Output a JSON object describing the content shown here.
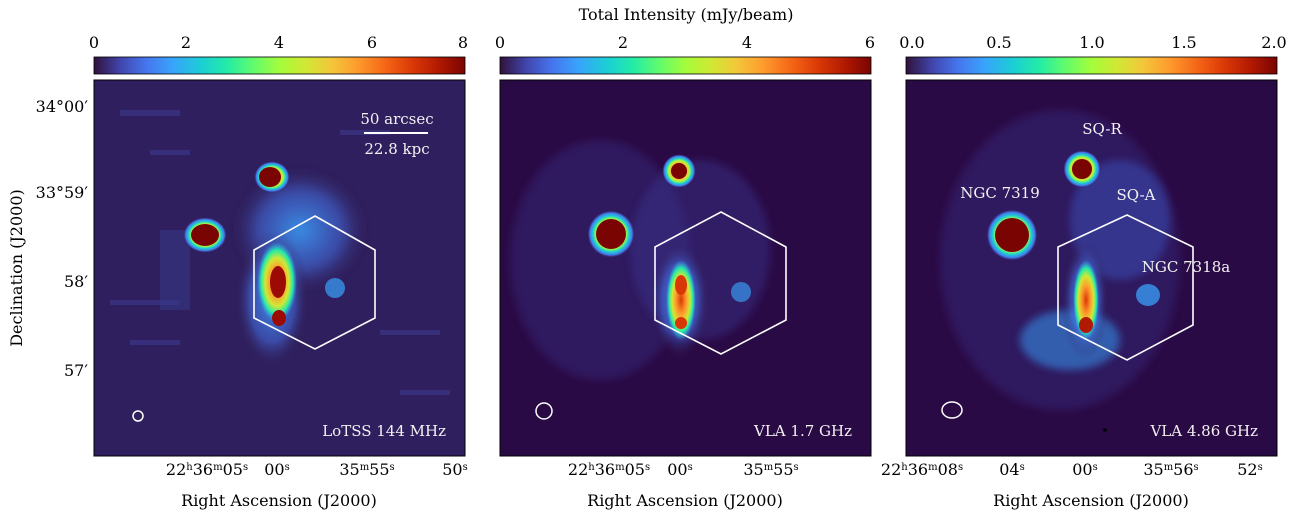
{
  "figure": {
    "colorbar_title": "Total Intensity (mJy/beam)",
    "y_axis_label": "Declination (J2000)",
    "y_tick_labels": [
      "34°00′",
      "33°59′",
      "58′",
      "57′"
    ]
  },
  "colors": {
    "background": "#2a0a45",
    "annotation": "#ffffff",
    "colormap": [
      "#30123b",
      "#4145ab",
      "#4675ed",
      "#39a2fc",
      "#1bcfd4",
      "#24eca6",
      "#61fc6c",
      "#a4fc3b",
      "#d1e834",
      "#f3c63a",
      "#fe9b2d",
      "#f36315",
      "#d93806",
      "#b11901",
      "#7a0402"
    ]
  },
  "chart_data": [
    {
      "type": "heatmap",
      "panel_label": "LoTSS 144 MHz",
      "xlabel": "Right Ascension (J2000)",
      "ylabel": "Declination (J2000)",
      "colorbar": {
        "ticks": [
          "0",
          "2",
          "4",
          "6",
          "8"
        ],
        "range": [
          0,
          8
        ],
        "unit": "mJy/beam"
      },
      "x_ticks": [
        {
          "base": "22",
          "h": "h",
          "m_val": "36",
          "m": "m",
          "s_val": "05",
          "s": "s"
        },
        {
          "base": "00",
          "s": "s"
        },
        {
          "base": "35",
          "m": "m",
          "s_val": "55",
          "s": "s"
        },
        {
          "base": "50",
          "s": "s"
        }
      ],
      "scale_bar": {
        "angular": "50 arcsec",
        "physical": "22.8 kpc"
      },
      "sources": []
    },
    {
      "type": "heatmap",
      "panel_label": "VLA 1.7 GHz",
      "xlabel": "Right Ascension (J2000)",
      "colorbar": {
        "ticks": [
          "0",
          "2",
          "4",
          "6"
        ],
        "range": [
          0,
          6
        ],
        "unit": "mJy/beam"
      },
      "x_ticks": [
        {
          "base": "22",
          "h": "h",
          "m_val": "36",
          "m": "m",
          "s_val": "05",
          "s": "s"
        },
        {
          "base": "00",
          "s": "s"
        },
        {
          "base": "35",
          "m": "m",
          "s_val": "55",
          "s": "s"
        }
      ],
      "sources": []
    },
    {
      "type": "heatmap",
      "panel_label": "VLA 4.86 GHz",
      "xlabel": "Right Ascension (J2000)",
      "colorbar": {
        "ticks": [
          "0.0",
          "0.5",
          "1.0",
          "1.5",
          "2.0"
        ],
        "range": [
          0,
          2
        ],
        "unit": "mJy/beam"
      },
      "x_ticks": [
        {
          "base": "22",
          "h": "h",
          "m_val": "36",
          "m": "m",
          "s_val": "08",
          "s": "s"
        },
        {
          "base": "04",
          "s": "s"
        },
        {
          "base": "00",
          "s": "s"
        },
        {
          "base": "35",
          "m": "m",
          "s_val": "56",
          "s": "s"
        },
        {
          "base": "52",
          "s": "s"
        }
      ],
      "sources": [
        "SQ-R",
        "NGC 7319",
        "SQ-A",
        "NGC 7318a"
      ]
    }
  ]
}
